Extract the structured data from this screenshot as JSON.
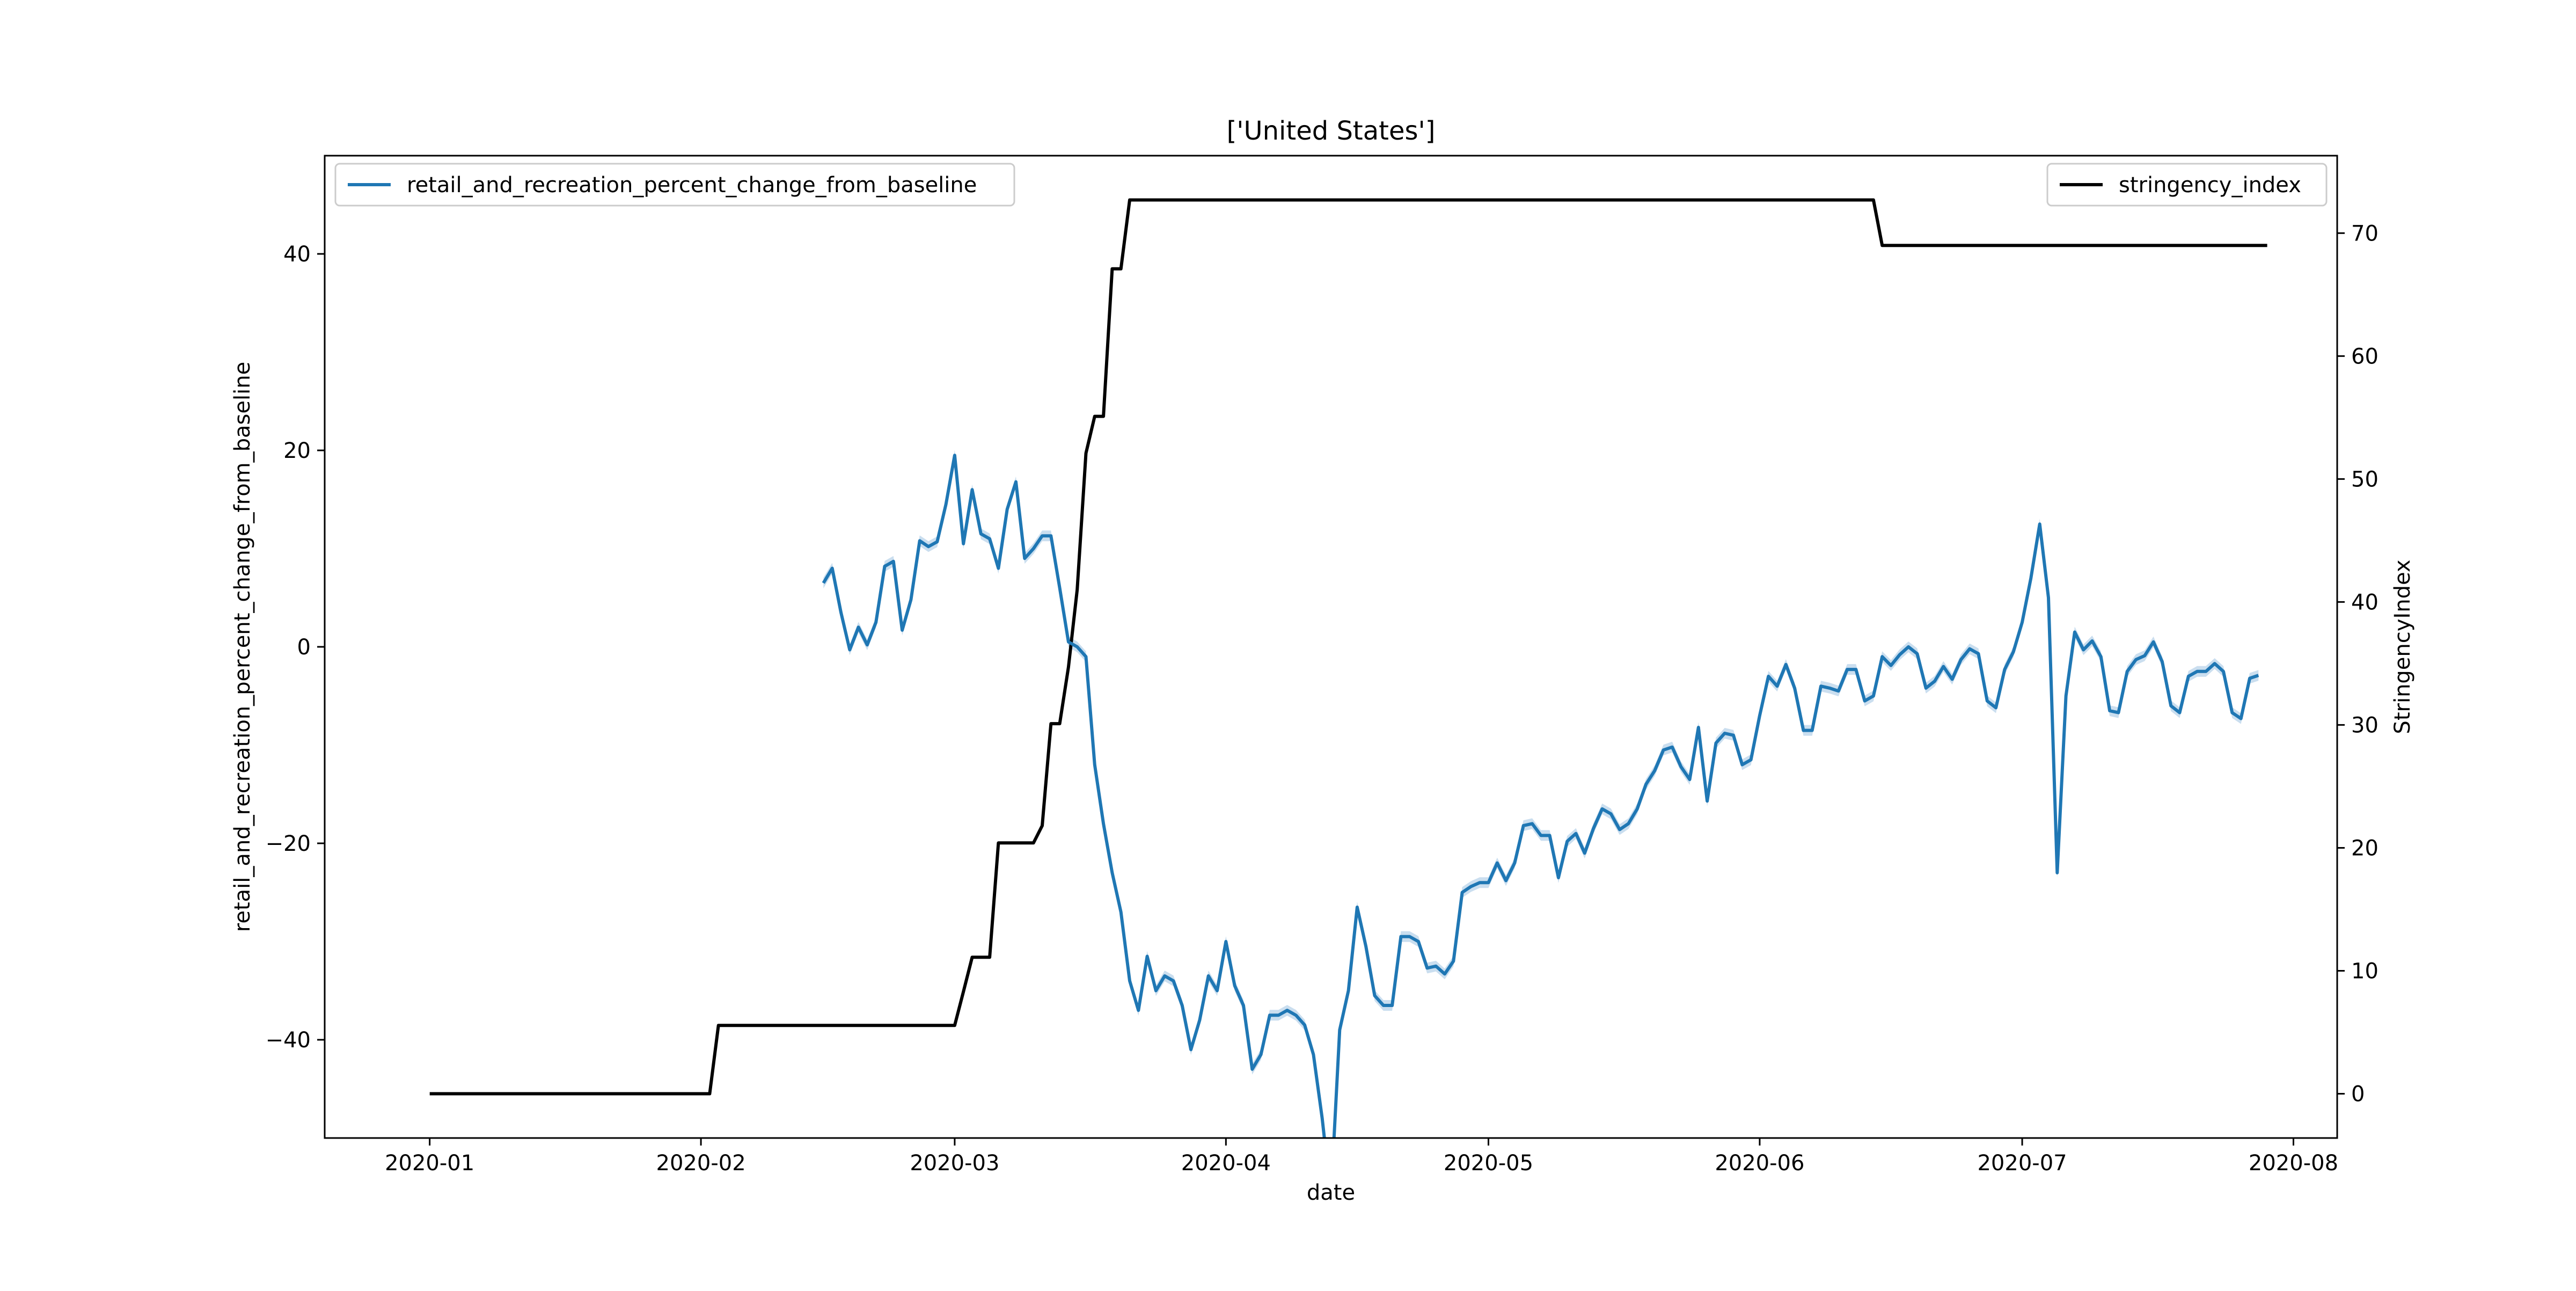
{
  "chart_data": {
    "type": "line",
    "title": "['United States']",
    "xlabel": "date",
    "ylabel": "retail_and_recreation_percent_change_from_baseline",
    "y2label": "StringencyIndex",
    "x_ticks": [
      "2020-01",
      "2020-02",
      "2020-03",
      "2020-04",
      "2020-05",
      "2020-06",
      "2020-07",
      "2020-08"
    ],
    "y_ticks": [
      -40,
      -20,
      0,
      20,
      40
    ],
    "y2_ticks": [
      0,
      10,
      20,
      30,
      40,
      50,
      60,
      70
    ],
    "xlim": [
      "2019-12-20",
      "2020-08-06"
    ],
    "ylim": [
      -50,
      50
    ],
    "y2lim": [
      -3.6,
      76.3
    ],
    "grid": false,
    "legend_left": {
      "placement": "upper left",
      "label": "retail_and_recreation_percent_change_from_baseline"
    },
    "legend_right": {
      "placement": "upper right",
      "label": "stringency_index"
    },
    "colors": {
      "retail": "#1f77b4",
      "band": "#a6c8e5",
      "stringency": "#000000"
    },
    "series": [
      {
        "name": "retail_and_recreation_percent_change_from_baseline",
        "axis": "left",
        "start_date": "2020-02-15",
        "values": [
          6.5,
          8,
          3.5,
          -0.3,
          2,
          0.2,
          2.5,
          8.2,
          8.7,
          1.7,
          4.8,
          10.8,
          10.2,
          10.7,
          14.5,
          19.5,
          10.5,
          16,
          11.5,
          11,
          8,
          14,
          16.8,
          9,
          10,
          11.3,
          11.3,
          6,
          0.5,
          0,
          -1,
          -12,
          -18,
          -23,
          -27,
          -34,
          -37,
          -31.5,
          -35,
          -33.5,
          -34,
          -36.5,
          -41,
          -38,
          -33.5,
          -35,
          -30,
          -34.5,
          -36.5,
          -43,
          -41.5,
          -37.5,
          -37.5,
          -37,
          -37.5,
          -38.5,
          -41.5,
          -48,
          -56,
          -39,
          -35,
          -26.5,
          -30.5,
          -35.5,
          -36.5,
          -36.5,
          -29.5,
          -29.5,
          -30,
          -32.7,
          -32.5,
          -33.3,
          -32,
          -25,
          -24.4,
          -24,
          -24,
          -22,
          -23.8,
          -22,
          -18.2,
          -18,
          -19.2,
          -19.2,
          -23.5,
          -19.8,
          -19,
          -21,
          -18.5,
          -16.5,
          -17,
          -18.6,
          -18,
          -16.5,
          -14,
          -12.6,
          -10.5,
          -10.2,
          -12.2,
          -13.5,
          -8.2,
          -15.7,
          -9.8,
          -8.8,
          -9,
          -12,
          -11.5,
          -7,
          -3,
          -4,
          -1.8,
          -4.2,
          -8.5,
          -8.5,
          -4,
          -4.2,
          -4.5,
          -2.3,
          -2.3,
          -5.5,
          -5,
          -1,
          -1.9,
          -0.8,
          0,
          -0.7,
          -4.2,
          -3.5,
          -2,
          -3.3,
          -1.3,
          -0.2,
          -0.7,
          -5.5,
          -6.2,
          -2.3,
          -0.5,
          2.5,
          7,
          12.5,
          5,
          -23,
          -5,
          1.5,
          -0.3,
          0.6,
          -1,
          -6.5,
          -6.7,
          -2.5,
          -1.3,
          -0.9,
          0.5,
          -1.5,
          -6,
          -6.7,
          -3,
          -2.5,
          -2.5,
          -1.7,
          -2.5,
          -6.7,
          -7.3,
          -3.2,
          -2.9
        ]
      },
      {
        "name": "stringency_index",
        "axis": "right",
        "steps": [
          {
            "date": "2020-01-01",
            "value": 0
          },
          {
            "date": "2020-02-02",
            "value": 0
          },
          {
            "date": "2020-02-03",
            "value": 5.56
          },
          {
            "date": "2020-03-01",
            "value": 5.56
          },
          {
            "date": "2020-03-02",
            "value": 8.3
          },
          {
            "date": "2020-03-03",
            "value": 11.1
          },
          {
            "date": "2020-03-05",
            "value": 11.1
          },
          {
            "date": "2020-03-06",
            "value": 20.4
          },
          {
            "date": "2020-03-10",
            "value": 20.4
          },
          {
            "date": "2020-03-11",
            "value": 21.8
          },
          {
            "date": "2020-03-12",
            "value": 30.1
          },
          {
            "date": "2020-03-13",
            "value": 30.1
          },
          {
            "date": "2020-03-14",
            "value": 34.7
          },
          {
            "date": "2020-03-15",
            "value": 41
          },
          {
            "date": "2020-03-16",
            "value": 52.1
          },
          {
            "date": "2020-03-17",
            "value": 55.1
          },
          {
            "date": "2020-03-18",
            "value": 55.1
          },
          {
            "date": "2020-03-19",
            "value": 67.1
          },
          {
            "date": "2020-03-20",
            "value": 67.1
          },
          {
            "date": "2020-03-21",
            "value": 72.7
          },
          {
            "date": "2020-06-14",
            "value": 72.7
          },
          {
            "date": "2020-06-15",
            "value": 69
          },
          {
            "date": "2020-07-29",
            "value": 69
          }
        ]
      }
    ]
  }
}
